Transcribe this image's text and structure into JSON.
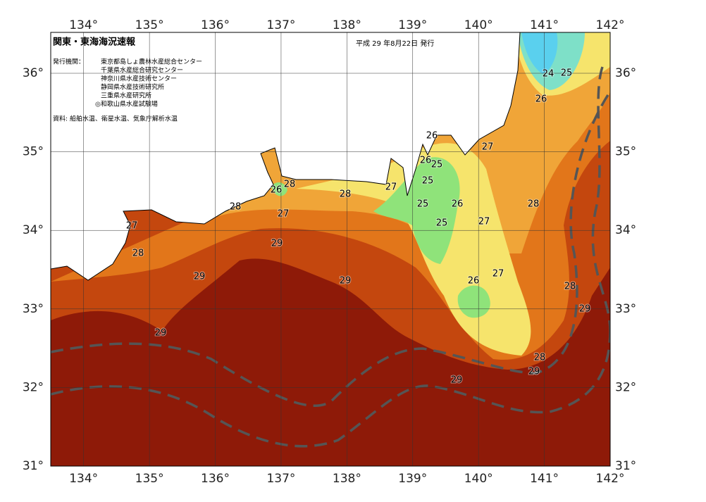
{
  "header": {
    "title": "関東・東海海況速報",
    "issue_date": "平成 29 年8月22日 発行",
    "issuer_heading": "発行機関：",
    "issuers": [
      "東京都島しょ農林水産総合センター",
      "千葉県水産総合研究センター",
      "神奈川県水産技術センター",
      "静岡県水産技術研究所",
      "三重県水産研究所",
      "◎和歌山県水産試験場"
    ],
    "source": "資料: 船舶水温、衛星水温、気象庁解析水温"
  },
  "map": {
    "lon_range": [
      133.5,
      142
    ],
    "lat_range": [
      31,
      36.52
    ],
    "lon_ticks": [
      {
        "value": 134,
        "label": "134°"
      },
      {
        "value": 135,
        "label": "135°"
      },
      {
        "value": 136,
        "label": "136°"
      },
      {
        "value": 137,
        "label": "137°"
      },
      {
        "value": 138,
        "label": "138°"
      },
      {
        "value": 139,
        "label": "139°"
      },
      {
        "value": 140,
        "label": "140°"
      },
      {
        "value": 141,
        "label": "141°"
      },
      {
        "value": 142,
        "label": "142°"
      }
    ],
    "lat_ticks": [
      {
        "value": 31,
        "label": "31°"
      },
      {
        "value": 32,
        "label": "32°"
      },
      {
        "value": 33,
        "label": "33°"
      },
      {
        "value": 34,
        "label": "34°"
      },
      {
        "value": 35,
        "label": "35°"
      },
      {
        "value": 36,
        "label": "36°"
      }
    ],
    "contour_labels": [
      24,
      25,
      26,
      26,
      27,
      26,
      25,
      25,
      27,
      28,
      26,
      28,
      27,
      28,
      25,
      26,
      28,
      27,
      25,
      27,
      29,
      28,
      29,
      29,
      27,
      26,
      28,
      29,
      29,
      28,
      29,
      29
    ]
  }
}
